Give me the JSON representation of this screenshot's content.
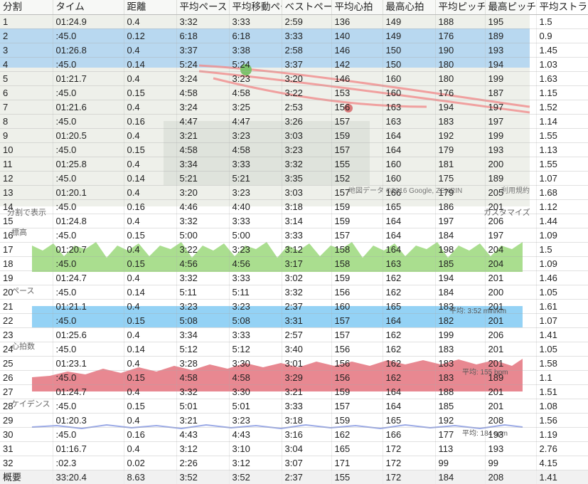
{
  "table": {
    "columns": [
      "分割",
      "タイム",
      "距離",
      "平均ペース",
      "平均移動ペース",
      "ベストペース",
      "平均心拍",
      "最高心拍",
      "平均ピッチ",
      "最高ピッチ",
      "平均ストライド"
    ],
    "rows": [
      [
        "1",
        "01:24.9",
        "0.4",
        "3:32",
        "3:33",
        "2:59",
        "136",
        "149",
        "188",
        "195",
        "1.5"
      ],
      [
        "2",
        ":45.0",
        "0.12",
        "6:18",
        "6:18",
        "3:33",
        "140",
        "149",
        "176",
        "189",
        "0.9"
      ],
      [
        "3",
        "01:26.8",
        "0.4",
        "3:37",
        "3:38",
        "2:58",
        "146",
        "150",
        "190",
        "193",
        "1.45"
      ],
      [
        "4",
        ":45.0",
        "0.14",
        "5:24",
        "5:24",
        "3:37",
        "142",
        "150",
        "180",
        "194",
        "1.03"
      ],
      [
        "5",
        "01:21.7",
        "0.4",
        "3:24",
        "3:23",
        "3:20",
        "146",
        "160",
        "180",
        "199",
        "1.63"
      ],
      [
        "6",
        ":45.0",
        "0.15",
        "4:58",
        "4:58",
        "3:22",
        "153",
        "160",
        "176",
        "187",
        "1.15"
      ],
      [
        "7",
        "01:21.6",
        "0.4",
        "3:24",
        "3:25",
        "2:53",
        "156",
        "163",
        "194",
        "197",
        "1.52"
      ],
      [
        "8",
        ":45.0",
        "0.16",
        "4:47",
        "4:47",
        "3:26",
        "157",
        "163",
        "183",
        "197",
        "1.14"
      ],
      [
        "9",
        "01:20.5",
        "0.4",
        "3:21",
        "3:23",
        "3:03",
        "159",
        "164",
        "192",
        "199",
        "1.55"
      ],
      [
        "10",
        ":45.0",
        "0.15",
        "4:58",
        "4:58",
        "3:23",
        "157",
        "164",
        "179",
        "193",
        "1.13"
      ],
      [
        "11",
        "01:25.8",
        "0.4",
        "3:34",
        "3:33",
        "3:32",
        "155",
        "160",
        "181",
        "200",
        "1.55"
      ],
      [
        "12",
        ":45.0",
        "0.14",
        "5:21",
        "5:21",
        "3:35",
        "152",
        "160",
        "175",
        "189",
        "1.07"
      ],
      [
        "13",
        "01:20.1",
        "0.4",
        "3:20",
        "3:23",
        "3:03",
        "157",
        "166",
        "179",
        "205",
        "1.68"
      ],
      [
        "14",
        ":45.0",
        "0.16",
        "4:46",
        "4:40",
        "3:18",
        "159",
        "165",
        "186",
        "201",
        "1.12"
      ],
      [
        "15",
        "01:24.8",
        "0.4",
        "3:32",
        "3:33",
        "3:14",
        "159",
        "164",
        "197",
        "206",
        "1.44"
      ],
      [
        "16",
        ":45.0",
        "0.15",
        "5:00",
        "5:00",
        "3:33",
        "157",
        "164",
        "184",
        "197",
        "1.09"
      ],
      [
        "17",
        "01:20.7",
        "0.4",
        "3:22",
        "3:23",
        "3:12",
        "158",
        "164",
        "198",
        "204",
        "1.5"
      ],
      [
        "18",
        ":45.0",
        "0.15",
        "4:56",
        "4:56",
        "3:17",
        "158",
        "163",
        "185",
        "204",
        "1.09"
      ],
      [
        "19",
        "01:24.7",
        "0.4",
        "3:32",
        "3:33",
        "3:02",
        "159",
        "162",
        "194",
        "201",
        "1.46"
      ],
      [
        "20",
        ":45.0",
        "0.14",
        "5:11",
        "5:11",
        "3:32",
        "156",
        "162",
        "184",
        "200",
        "1.05"
      ],
      [
        "21",
        "01:21.1",
        "0.4",
        "3:23",
        "3:23",
        "2:37",
        "160",
        "165",
        "183",
        "201",
        "1.61"
      ],
      [
        "22",
        ":45.0",
        "0.15",
        "5:08",
        "5:08",
        "3:31",
        "157",
        "164",
        "182",
        "201",
        "1.07"
      ],
      [
        "23",
        "01:25.6",
        "0.4",
        "3:34",
        "3:33",
        "2:57",
        "157",
        "162",
        "199",
        "206",
        "1.41"
      ],
      [
        "24",
        ":45.0",
        "0.14",
        "5:12",
        "5:12",
        "3:40",
        "156",
        "162",
        "183",
        "201",
        "1.05"
      ],
      [
        "25",
        "01:23.1",
        "0.4",
        "3:28",
        "3:30",
        "3:01",
        "156",
        "162",
        "183",
        "201",
        "1.58"
      ],
      [
        "26",
        ":45.0",
        "0.15",
        "4:58",
        "4:58",
        "3:29",
        "156",
        "162",
        "183",
        "189",
        "1.1"
      ],
      [
        "27",
        "01:24.7",
        "0.4",
        "3:32",
        "3:30",
        "3:21",
        "159",
        "164",
        "188",
        "201",
        "1.51"
      ],
      [
        "28",
        ":45.0",
        "0.15",
        "5:01",
        "5:01",
        "3:33",
        "157",
        "164",
        "185",
        "201",
        "1.08"
      ],
      [
        "29",
        "01:20.3",
        "0.4",
        "3:21",
        "3:23",
        "3:18",
        "159",
        "165",
        "192",
        "208",
        "1.56"
      ],
      [
        "30",
        ":45.0",
        "0.16",
        "4:43",
        "4:43",
        "3:16",
        "162",
        "166",
        "177",
        "193",
        "1.19"
      ],
      [
        "31",
        "01:16.7",
        "0.4",
        "3:12",
        "3:10",
        "3:04",
        "165",
        "172",
        "113",
        "193",
        "2.76"
      ],
      [
        "32",
        ":02.3",
        "0.02",
        "2:26",
        "3:12",
        "3:07",
        "171",
        "172",
        "99",
        "99",
        "4.15"
      ]
    ],
    "summary": [
      "概要",
      "33:20.4",
      "8.63",
      "3:52",
      "3:52",
      "2:37",
      "155",
      "172",
      "184",
      "208",
      "1.41"
    ]
  },
  "background": {
    "map_ui": {
      "map_data_label": "地図データ ©2016 Google, ZENRIN",
      "terms_label": "利用規約",
      "split_display_label": "分割で表示",
      "customize_label": "カスタマイズ"
    },
    "charts": [
      {
        "name": "標高",
        "color": "#8ed36a"
      },
      {
        "name": "ペース",
        "color": "#79c7f2",
        "avg_label": "平均: 3:52 min/km"
      },
      {
        "name": "心拍数",
        "color": "#e0606c",
        "avg_label": "平均: 155 bpm"
      },
      {
        "name": "ケイデンス",
        "color": "#9aa9e6",
        "avg_label": "平均: 184 spm"
      }
    ]
  },
  "colors": {
    "grid": "#bbbbbb",
    "text": "#222222",
    "summary_bg": "#ebebeb"
  }
}
